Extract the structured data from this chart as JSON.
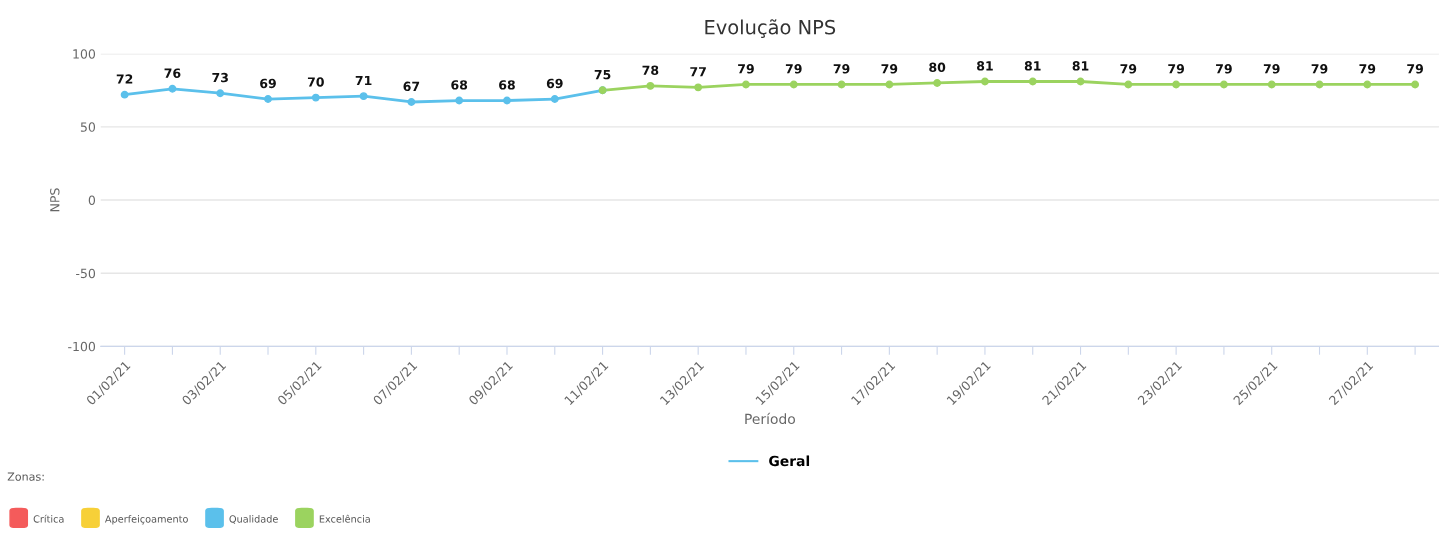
{
  "chart_data": {
    "type": "line",
    "title": "Evolução NPS",
    "xlabel": "Período",
    "ylabel": "NPS",
    "categories": [
      "01/02/21",
      null,
      "03/02/21",
      null,
      "05/02/21",
      null,
      "07/02/21",
      null,
      "09/02/21",
      null,
      "11/02/21",
      null,
      "13/02/21",
      null,
      "15/02/21",
      null,
      "17/02/21",
      null,
      "19/02/21",
      null,
      "21/02/21",
      null,
      "23/02/21",
      null,
      "25/02/21",
      null,
      "27/02/21",
      null
    ],
    "series": [
      {
        "name": "Geral",
        "color": "#5bc0eb",
        "values": [
          72,
          76,
          73,
          69,
          70,
          71,
          67,
          68,
          68,
          69,
          75,
          null,
          null,
          null,
          null,
          null,
          null,
          null,
          null,
          null,
          null,
          null,
          null,
          null,
          null,
          null,
          null,
          null
        ]
      },
      {
        "color": "#9bd35f",
        "values": [
          null,
          null,
          null,
          null,
          null,
          null,
          null,
          null,
          null,
          null,
          75,
          78,
          77,
          79,
          79,
          79,
          79,
          80,
          81,
          81,
          81,
          79,
          79,
          79,
          79,
          79,
          79,
          79
        ],
        "value_labels": [
          null,
          null,
          null,
          null,
          null,
          null,
          null,
          null,
          null,
          null,
          null,
          "78",
          "77",
          "79",
          "79",
          "79",
          "79",
          "80",
          "81",
          "81",
          "81",
          "79",
          "79",
          "79",
          "79",
          "79",
          "79",
          "79"
        ]
      }
    ],
    "ylim": [
      -100,
      100
    ],
    "yticks": [
      -100,
      -50,
      0,
      50,
      100
    ],
    "grid": "y",
    "marker": "circle",
    "line_style": "solid",
    "data_labels": true,
    "legend": "bottom",
    "annotations": [
      "Zonas:",
      "Crítica",
      "Aperfeiçoamento",
      "Qualidade",
      "Excelência"
    ]
  }
}
